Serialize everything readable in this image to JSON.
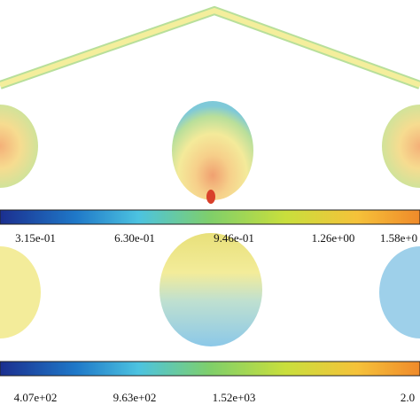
{
  "colorbars": [
    {
      "ticks": [
        "3.15e-01",
        "6.30e-01",
        "9.46e-01",
        "1.26e+00",
        "1.58e+0"
      ]
    },
    {
      "ticks": [
        "4.07e+02",
        "9.63e+02",
        "1.52e+03",
        "2.0"
      ]
    }
  ]
}
